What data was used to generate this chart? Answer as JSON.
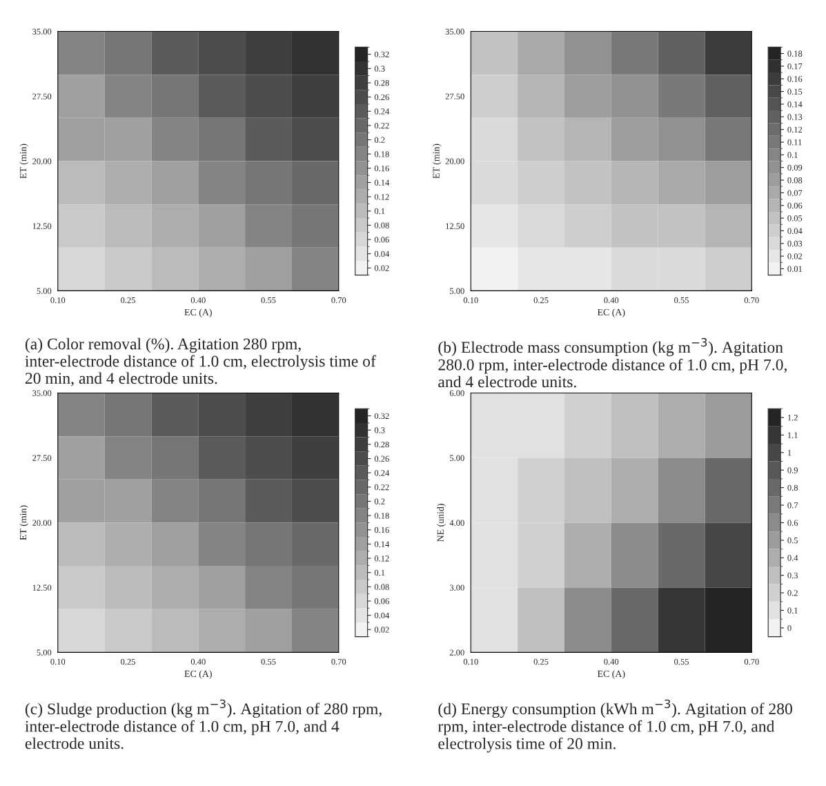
{
  "chart_data": [
    {
      "type": "heatmap",
      "xlabel": "EC (A)",
      "ylabel": "ET (min)",
      "annotations": [
        "(a) Color removal (%). Agitation 280 rpm, inter-electrode distance of 1.0 cm, electrolysis time of 20 min, and 4 electrode units."
      ],
      "xlim": [
        0.1,
        0.7
      ],
      "ylim": [
        5,
        35
      ],
      "xticks": [
        {
          "value": 0.1,
          "label": "0.10"
        },
        {
          "value": 0.25,
          "label": "0.25"
        },
        {
          "value": 0.4,
          "label": "0.40"
        },
        {
          "value": 0.55,
          "label": "0.55"
        },
        {
          "value": 0.7,
          "label": "0.70"
        }
      ],
      "yticks": [
        {
          "value": 5,
          "label": "5.00"
        },
        {
          "value": 12.5,
          "label": "12.50"
        },
        {
          "value": 20,
          "label": "20.00"
        },
        {
          "value": 27.5,
          "label": "27.50"
        },
        {
          "value": 35,
          "label": "35.00"
        }
      ],
      "cells": [
        [
          0.18,
          0.2,
          0.23,
          0.25,
          0.28,
          0.3
        ],
        [
          0.15,
          0.18,
          0.2,
          0.23,
          0.25,
          0.28
        ],
        [
          0.13,
          0.15,
          0.18,
          0.2,
          0.23,
          0.25
        ],
        [
          0.1,
          0.12,
          0.15,
          0.17,
          0.2,
          0.22
        ],
        [
          0.07,
          0.1,
          0.12,
          0.15,
          0.17,
          0.2
        ],
        [
          0.05,
          0.07,
          0.1,
          0.12,
          0.15,
          0.17
        ]
      ],
      "clim": [
        0.01,
        0.33
      ],
      "cticks": [
        0.02,
        0.04,
        0.06,
        0.08,
        0.1,
        0.12,
        0.14,
        0.16,
        0.18,
        0.2,
        0.22,
        0.24,
        0.26,
        0.28,
        0.3,
        0.32
      ]
    },
    {
      "type": "heatmap",
      "xlabel": "EC (A)",
      "ylabel": "ET (min)",
      "annotations": [
        "(b) Electrode mass consumption (kg m$^{−3}$). Agitation 280.0 rpm, inter-electrode distance of 1.0 cm, pH 7.0, and 4 electrode units."
      ],
      "xlim": [
        0.1,
        0.7
      ],
      "ylim": [
        5,
        35
      ],
      "xticks": [
        {
          "value": 0.1,
          "label": "0.10"
        },
        {
          "value": 0.25,
          "label": "0.25"
        },
        {
          "value": 0.4,
          "label": "0.40"
        },
        {
          "value": 0.55,
          "label": "0.55"
        },
        {
          "value": 0.7,
          "label": "0.70"
        }
      ],
      "yticks": [
        {
          "value": 5,
          "label": "5.00"
        },
        {
          "value": 12.5,
          "label": "12.50"
        },
        {
          "value": 20,
          "label": "20.00"
        },
        {
          "value": 27.5,
          "label": "27.50"
        },
        {
          "value": 35,
          "label": "35.00"
        }
      ],
      "cells": [
        [
          0.05,
          0.07,
          0.09,
          0.11,
          0.13,
          0.16
        ],
        [
          0.04,
          0.06,
          0.08,
          0.09,
          0.11,
          0.13
        ],
        [
          0.03,
          0.05,
          0.06,
          0.08,
          0.09,
          0.11
        ],
        [
          0.03,
          0.04,
          0.05,
          0.06,
          0.07,
          0.08
        ],
        [
          0.02,
          0.03,
          0.04,
          0.05,
          0.05,
          0.06
        ],
        [
          0.01,
          0.02,
          0.02,
          0.03,
          0.03,
          0.04
        ]
      ],
      "clim": [
        0.005,
        0.185
      ],
      "cticks": [
        0.01,
        0.02,
        0.03,
        0.04,
        0.05,
        0.06,
        0.07,
        0.08,
        0.09,
        0.1,
        0.11,
        0.12,
        0.13,
        0.14,
        0.15,
        0.16,
        0.17,
        0.18
      ]
    },
    {
      "type": "heatmap",
      "xlabel": "EC (A)",
      "ylabel": "ET (min)",
      "annotations": [
        "(c) Sludge production (kg m$^{−3}$). Agitation of 280 rpm, inter-electrode distance of 1.0 cm, pH 7.0, and 4 electrode units."
      ],
      "xlim": [
        0.1,
        0.7
      ],
      "ylim": [
        5,
        35
      ],
      "xticks": [
        {
          "value": 0.1,
          "label": "0.10"
        },
        {
          "value": 0.25,
          "label": "0.25"
        },
        {
          "value": 0.4,
          "label": "0.40"
        },
        {
          "value": 0.55,
          "label": "0.55"
        },
        {
          "value": 0.7,
          "label": "0.70"
        }
      ],
      "yticks": [
        {
          "value": 5,
          "label": "5.00"
        },
        {
          "value": 12.5,
          "label": "12.50"
        },
        {
          "value": 20,
          "label": "20.00"
        },
        {
          "value": 27.5,
          "label": "27.50"
        },
        {
          "value": 35,
          "label": "35.00"
        }
      ],
      "cells": [
        [
          0.18,
          0.2,
          0.23,
          0.25,
          0.28,
          0.3
        ],
        [
          0.15,
          0.18,
          0.2,
          0.23,
          0.25,
          0.28
        ],
        [
          0.13,
          0.15,
          0.18,
          0.2,
          0.23,
          0.25
        ],
        [
          0.1,
          0.12,
          0.15,
          0.17,
          0.2,
          0.22
        ],
        [
          0.07,
          0.1,
          0.12,
          0.15,
          0.17,
          0.2
        ],
        [
          0.05,
          0.07,
          0.1,
          0.12,
          0.15,
          0.17
        ]
      ],
      "clim": [
        0.01,
        0.33
      ],
      "cticks": [
        0.02,
        0.04,
        0.06,
        0.08,
        0.1,
        0.12,
        0.14,
        0.16,
        0.18,
        0.2,
        0.22,
        0.24,
        0.26,
        0.28,
        0.3,
        0.32
      ]
    },
    {
      "type": "heatmap",
      "xlabel": "EC (A)",
      "ylabel": "NE (unid)",
      "annotations": [
        "(d) Energy consumption (kWh m$^{−3}$). Agitation of 280 rpm, inter-electrode distance of 1.0 cm, pH 7.0, and electrolysis time of 20 min."
      ],
      "xlim": [
        0.1,
        0.7
      ],
      "ylim": [
        2,
        6
      ],
      "xticks": [
        {
          "value": 0.1,
          "label": "0.10"
        },
        {
          "value": 0.25,
          "label": "0.25"
        },
        {
          "value": 0.4,
          "label": "0.40"
        },
        {
          "value": 0.55,
          "label": "0.55"
        },
        {
          "value": 0.7,
          "label": "0.70"
        }
      ],
      "yticks": [
        {
          "value": 2,
          "label": "2.00"
        },
        {
          "value": 3,
          "label": "3.00"
        },
        {
          "value": 4,
          "label": "4.00"
        },
        {
          "value": 5,
          "label": "5.00"
        },
        {
          "value": 6,
          "label": "6.00"
        }
      ],
      "cells": [
        [
          0.1,
          0.1,
          0.2,
          0.3,
          0.4,
          0.5
        ],
        [
          0.1,
          0.2,
          0.3,
          0.4,
          0.6,
          0.8
        ],
        [
          0.1,
          0.2,
          0.4,
          0.6,
          0.8,
          1.0
        ],
        [
          0.1,
          0.3,
          0.6,
          0.8,
          1.1,
          1.2
        ]
      ],
      "clim": [
        -0.05,
        1.25
      ],
      "cticks": [
        0,
        0.1,
        0.2,
        0.3,
        0.4,
        0.5,
        0.6,
        0.7,
        0.8,
        0.9,
        1,
        1.1,
        1.2
      ]
    }
  ]
}
